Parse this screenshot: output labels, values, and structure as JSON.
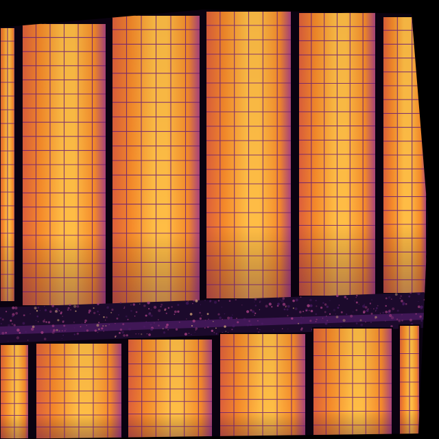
{
  "image": {
    "subject": "thermal-infrared-solar-array",
    "colors": {
      "background": "#000000",
      "gap": "#0a0210",
      "cell_hot": "#ffbd45",
      "cell_warm": "#f58a2a",
      "cell_mid": "#dc5d3c",
      "cell_cool": "#a53f83",
      "grid_line": "#6a1f74",
      "ground_dark": "#1c0a2c",
      "ground_mid": "#4a1a62",
      "ground_bright": "#d8aa7a"
    }
  }
}
